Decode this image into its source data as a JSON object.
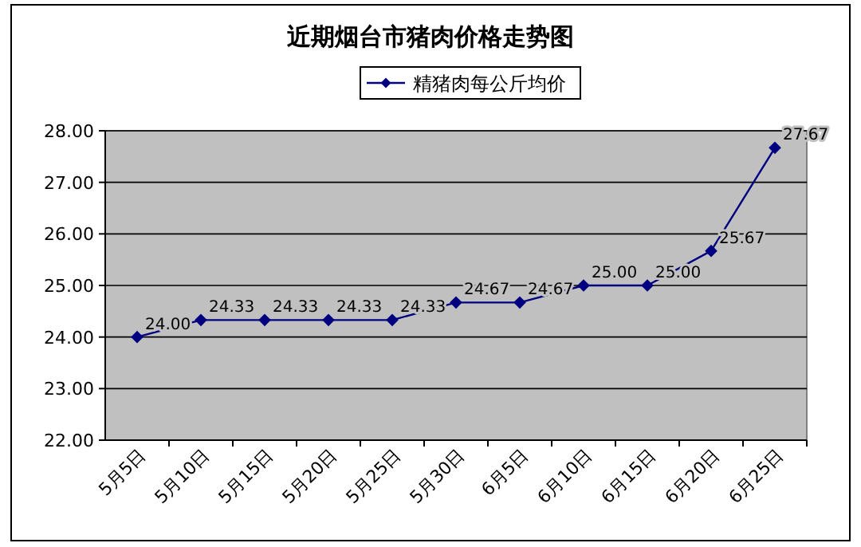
{
  "chart_data": {
    "type": "line",
    "title": "近期烟台市猪肉价格走势图",
    "categories": [
      "5月5日",
      "5月10日",
      "5月15日",
      "5月20日",
      "5月25日",
      "5月30日",
      "6月5日",
      "6月10日",
      "6月15日",
      "6月20日",
      "6月25日"
    ],
    "series": [
      {
        "name": "精猪肉每公斤均价",
        "color": "#000080",
        "values": [
          24.0,
          24.33,
          24.33,
          24.33,
          24.33,
          24.67,
          24.67,
          25.0,
          25.0,
          25.67,
          27.67
        ],
        "value_labels": [
          "24.00",
          "24.33",
          "24.33",
          "24.33",
          "24.33",
          "24.67",
          "24.67",
          "25.00",
          "25.00",
          "25.67",
          "27.67"
        ]
      }
    ],
    "ylim": [
      22,
      28
    ],
    "yticks": [
      {
        "value": 22,
        "label": "22.00"
      },
      {
        "value": 23,
        "label": "23.00"
      },
      {
        "value": 24,
        "label": "24.00"
      },
      {
        "value": 25,
        "label": "25.00"
      },
      {
        "value": 26,
        "label": "26.00"
      },
      {
        "value": 27,
        "label": "27.00"
      },
      {
        "value": 28,
        "label": "28.00"
      }
    ],
    "grid": "y",
    "legend": "top",
    "marker": "diamond",
    "line_style": "solid"
  }
}
